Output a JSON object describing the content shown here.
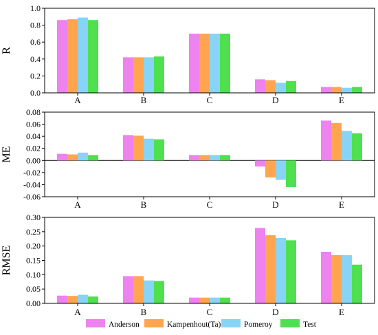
{
  "chart_data": [
    {
      "type": "bar",
      "ylabel": "R",
      "ylim": [
        0,
        1.0
      ],
      "yticks": [
        "0.0",
        "0.2",
        "0.4",
        "0.6",
        "0.8",
        "1.0"
      ],
      "ytick_values": [
        0,
        0.2,
        0.4,
        0.6,
        0.8,
        1.0
      ],
      "categories": [
        "A",
        "B",
        "C",
        "D",
        "E"
      ],
      "series": [
        {
          "name": "Anderson",
          "values": [
            0.86,
            0.42,
            0.7,
            0.16,
            0.07
          ]
        },
        {
          "name": "Kampenhout(Ta)",
          "values": [
            0.87,
            0.42,
            0.7,
            0.15,
            0.07
          ]
        },
        {
          "name": "Pomeroy",
          "values": [
            0.89,
            0.42,
            0.7,
            0.12,
            0.06
          ]
        },
        {
          "name": "Test",
          "values": [
            0.86,
            0.43,
            0.7,
            0.14,
            0.07
          ]
        }
      ]
    },
    {
      "type": "bar",
      "ylabel": "ME",
      "ylim": [
        -0.06,
        0.08
      ],
      "yticks": [
        "-0.06",
        "-0.04",
        "-0.02",
        "0.00",
        "0.02",
        "0.04",
        "0.06",
        "0.08"
      ],
      "ytick_values": [
        -0.06,
        -0.04,
        -0.02,
        0,
        0.02,
        0.04,
        0.06,
        0.08
      ],
      "categories": [
        "A",
        "B",
        "C",
        "D",
        "E"
      ],
      "series": [
        {
          "name": "Anderson",
          "values": [
            0.011,
            0.042,
            0.009,
            -0.01,
            0.066
          ]
        },
        {
          "name": "Kampenhout(Ta)",
          "values": [
            0.01,
            0.041,
            0.009,
            -0.028,
            0.062
          ]
        },
        {
          "name": "Pomeroy",
          "values": [
            0.013,
            0.036,
            0.009,
            -0.032,
            0.049
          ]
        },
        {
          "name": "Test",
          "values": [
            0.009,
            0.035,
            0.009,
            -0.044,
            0.045
          ]
        }
      ]
    },
    {
      "type": "bar",
      "ylabel": "RMSE",
      "ylim": [
        0,
        0.3
      ],
      "yticks": [
        "0.00",
        "0.05",
        "0.10",
        "0.15",
        "0.20",
        "0.25",
        "0.30"
      ],
      "ytick_values": [
        0,
        0.05,
        0.1,
        0.15,
        0.2,
        0.25,
        0.3
      ],
      "categories": [
        "A",
        "B",
        "C",
        "D",
        "E"
      ],
      "series": [
        {
          "name": "Anderson",
          "values": [
            0.027,
            0.095,
            0.02,
            0.263,
            0.18
          ]
        },
        {
          "name": "Kampenhout(Ta)",
          "values": [
            0.026,
            0.095,
            0.02,
            0.238,
            0.168
          ]
        },
        {
          "name": "Pomeroy",
          "values": [
            0.03,
            0.08,
            0.02,
            0.228,
            0.168
          ]
        },
        {
          "name": "Test",
          "values": [
            0.024,
            0.078,
            0.02,
            0.22,
            0.135
          ]
        }
      ]
    }
  ],
  "legend": {
    "placement": "bottom",
    "entries": [
      "Anderson",
      "Kampenhout(Ta)",
      "Pomeroy",
      "Test"
    ]
  },
  "colors": {
    "Anderson": "#ee82ee",
    "Kampenhout(Ta)": "#ffa54f",
    "Pomeroy": "#87d4f7",
    "Test": "#4ee04e"
  }
}
